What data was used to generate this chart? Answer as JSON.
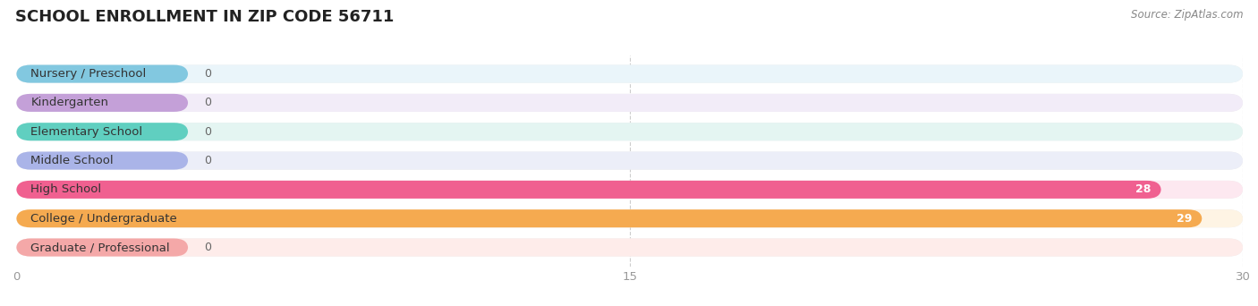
{
  "title": "SCHOOL ENROLLMENT IN ZIP CODE 56711",
  "source": "Source: ZipAtlas.com",
  "categories": [
    "Nursery / Preschool",
    "Kindergarten",
    "Elementary School",
    "Middle School",
    "High School",
    "College / Undergraduate",
    "Graduate / Professional"
  ],
  "values": [
    0,
    0,
    0,
    0,
    28,
    29,
    0
  ],
  "bar_colors": [
    "#82c8e0",
    "#c4a0d8",
    "#60cfc0",
    "#aab4e8",
    "#f06090",
    "#f5aa50",
    "#f4a8a8"
  ],
  "bar_bg_colors": [
    "#eaf5fa",
    "#f2ecf8",
    "#e4f5f2",
    "#eceef8",
    "#fde8f0",
    "#fef4e4",
    "#feecea"
  ],
  "row_bg_color": "#ebebeb",
  "xlim": [
    0,
    30
  ],
  "xticks": [
    0,
    15,
    30
  ],
  "background_color": "#ffffff",
  "title_fontsize": 13,
  "label_fontsize": 9.5,
  "value_fontsize": 9
}
